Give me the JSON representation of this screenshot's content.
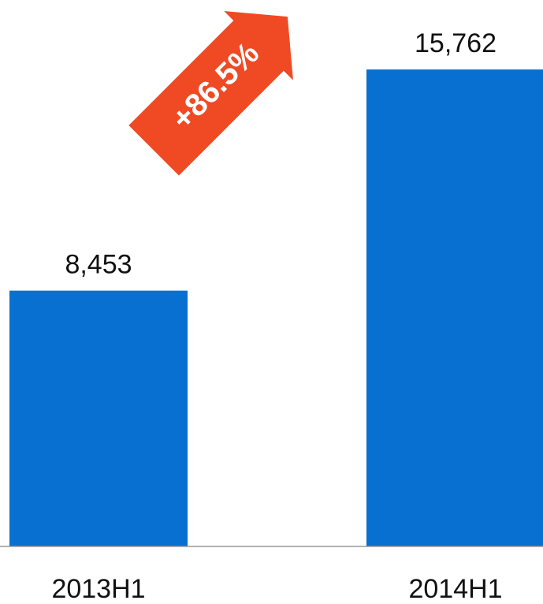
{
  "chart_data": {
    "type": "bar",
    "categories": [
      "2013H1",
      "2014H1"
    ],
    "values": [
      8453,
      15762
    ],
    "value_labels": [
      "8,453",
      "15,762"
    ],
    "color": "#0870d0",
    "ylim": [
      0,
      16000
    ],
    "annotation": "+86.5%",
    "annotation_color": "#f04a24"
  }
}
